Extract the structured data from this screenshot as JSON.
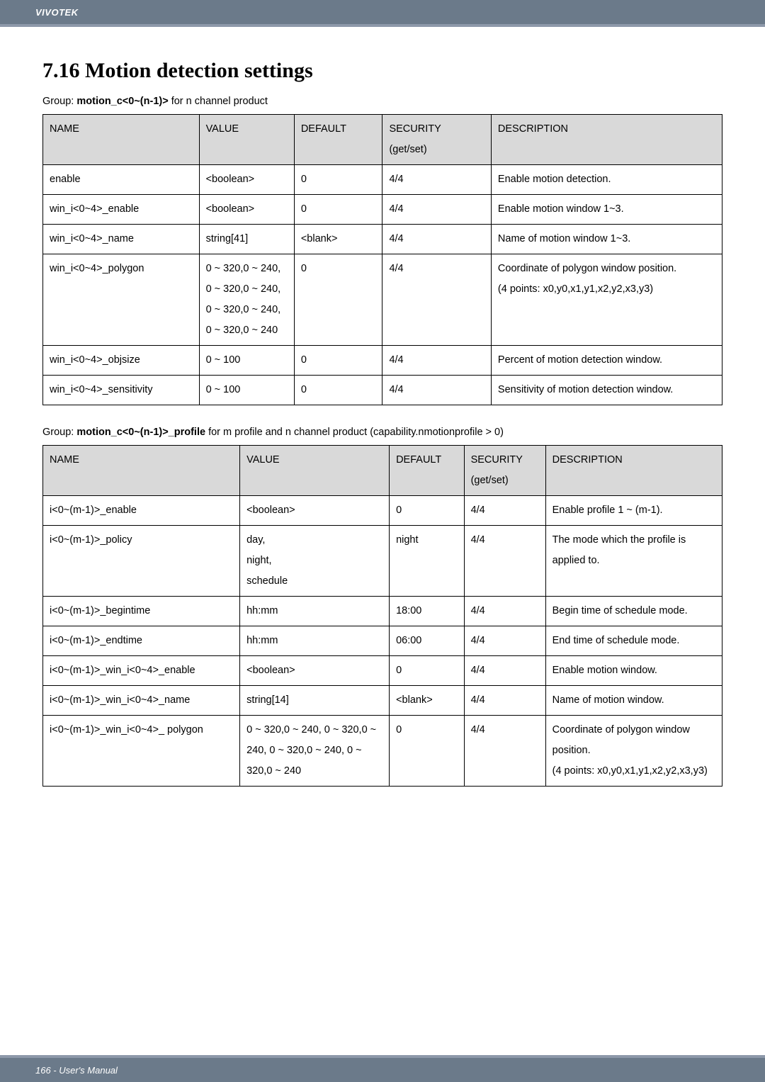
{
  "header": {
    "brand": "VIVOTEK"
  },
  "section": {
    "number_title": "7.16 Motion detection settings"
  },
  "group1": {
    "prefix": "Group: ",
    "bold": "motion_c<0~(n-1)>",
    "suffix": " for n channel product",
    "columns": [
      "NAME",
      "VALUE",
      "DEFAULT",
      "SECURITY (get/set)",
      "DESCRIPTION"
    ],
    "rows": [
      {
        "name": "enable",
        "value": "<boolean>",
        "default": "0",
        "security": "4/4",
        "desc": "Enable motion detection."
      },
      {
        "name": "win_i<0~4>_enable",
        "value": "<boolean>",
        "default": "0",
        "security": "4/4",
        "desc": "Enable motion window 1~3."
      },
      {
        "name": "win_i<0~4>_name",
        "value": "string[41]",
        "default": "<blank>",
        "security": "4/4",
        "desc": "Name of motion window 1~3."
      },
      {
        "name": "win_i<0~4>_polygon",
        "value": "0 ~ 320,0 ~ 240, 0 ~ 320,0 ~ 240, 0 ~ 320,0 ~ 240, 0 ~ 320,0 ~ 240",
        "default": "0",
        "security": "4/4",
        "desc": "Coordinate of polygon window position.\n(4 points: x0,y0,x1,y1,x2,y2,x3,y3)"
      },
      {
        "name": "win_i<0~4>_objsize",
        "value": "0 ~ 100",
        "default": "0",
        "security": "4/4",
        "desc": "Percent of motion detection window."
      },
      {
        "name": "win_i<0~4>_sensitivity",
        "value": "0 ~ 100",
        "default": "0",
        "security": "4/4",
        "desc": "Sensitivity of motion detection window."
      }
    ]
  },
  "group2": {
    "prefix": "Group: ",
    "bold": "motion_c<0~(n-1)>_profile",
    "suffix": " for m profile and n channel product (capability.nmotionprofile > 0)",
    "columns": [
      "NAME",
      "VALUE",
      "DEFAULT",
      "SECURITY (get/set)",
      "DESCRIPTION"
    ],
    "rows": [
      {
        "name": "i<0~(m-1)>_enable",
        "value": "<boolean>",
        "default": "0",
        "security": "4/4",
        "desc": "Enable profile 1 ~ (m-1)."
      },
      {
        "name": "i<0~(m-1)>_policy",
        "value": "day,\nnight,\nschedule",
        "default": "night",
        "security": "4/4",
        "desc": "The mode which the profile is applied to."
      },
      {
        "name": "i<0~(m-1)>_begintime",
        "value": "hh:mm",
        "default": "18:00",
        "security": "4/4",
        "desc": "Begin time of schedule mode."
      },
      {
        "name": "i<0~(m-1)>_endtime",
        "value": "hh:mm",
        "default": "06:00",
        "security": "4/4",
        "desc": "End time of schedule mode."
      },
      {
        "name": "i<0~(m-1)>_win_i<0~4>_enable",
        "value": "<boolean>",
        "default": "0",
        "security": "4/4",
        "desc": "Enable motion window."
      },
      {
        "name": "i<0~(m-1)>_win_i<0~4>_name",
        "value": "string[14]",
        "default": "<blank>",
        "security": "4/4",
        "desc": "Name of motion window."
      },
      {
        "name": "i<0~(m-1)>_win_i<0~4>_ polygon",
        "value": "0 ~ 320,0 ~ 240, 0 ~ 320,0 ~ 240, 0 ~ 320,0 ~ 240, 0 ~ 320,0 ~ 240",
        "default": "0",
        "security": "4/4",
        "desc": "Coordinate of polygon window position.\n(4 points: x0,y0,x1,y1,x2,y2,x3,y3)"
      }
    ]
  },
  "footer": {
    "text": "166 - User's Manual"
  },
  "layout": {
    "table1_col_widths": [
      "23%",
      "14%",
      "13%",
      "16%",
      "34%"
    ],
    "table2_col_widths": [
      "29%",
      "22%",
      "11%",
      "12%",
      "26%"
    ],
    "header_bg": "#6b7a8a",
    "header_accent": "#8e99aa",
    "th_bg": "#d9d9d9"
  }
}
